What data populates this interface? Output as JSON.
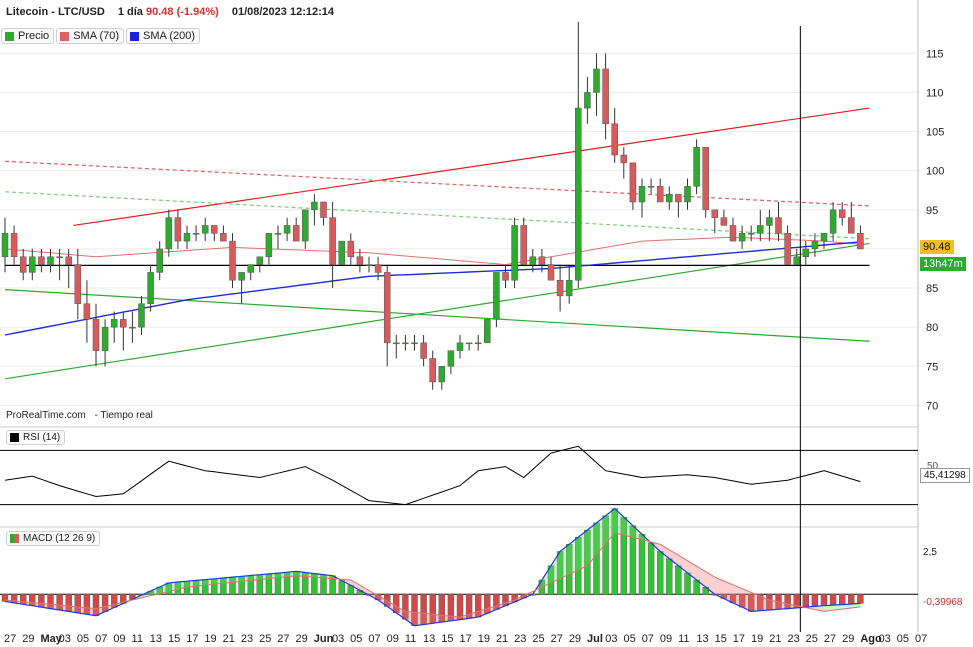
{
  "header": {
    "instrument": "Litecoin - LTC/USD",
    "period": "1 día",
    "last": "90.48",
    "change": "(-1.94%)",
    "datetime": "01/08/2023 12:12:14"
  },
  "legend": {
    "items": [
      {
        "label": "Precio",
        "color": "#2eab2e"
      },
      {
        "label": "SMA (70)",
        "color": "#e06060"
      },
      {
        "label": "SMA (200)",
        "color": "#1e1ee0"
      }
    ]
  },
  "source": {
    "brand": "ProRealTime.com",
    "mode": "- Tiempo real"
  },
  "price_tag": {
    "value": "90.48",
    "timer": "13h47m"
  },
  "rsi": {
    "label": "RSI (14)",
    "level_label": "50",
    "value_label": "45,41298",
    "level": 50
  },
  "macd": {
    "label": "MACD (12 26 9)",
    "tick_label": "2,5",
    "value_label": "-0,39968"
  },
  "colors": {
    "up": "#2eab2e",
    "down": "#d85a5a",
    "sma70": "#e07070",
    "sma200": "#1e2ed0",
    "resistance": "#e02020",
    "support": "#2ea82e"
  },
  "chart_data": [
    {
      "type": "candlestick",
      "title": "Litecoin - LTC/USD",
      "y_ticks": [
        70,
        75,
        80,
        85,
        90,
        95,
        100,
        105,
        110,
        115
      ],
      "ylim": [
        67.5,
        119
      ],
      "x_tick_labels": [
        "27",
        "29",
        "May",
        "03",
        "05",
        "07",
        "09",
        "11",
        "13",
        "15",
        "17",
        "19",
        "21",
        "23",
        "25",
        "27",
        "29",
        "Jun",
        "03",
        "05",
        "07",
        "09",
        "11",
        "13",
        "15",
        "17",
        "19",
        "21",
        "23",
        "25",
        "27",
        "29",
        "Jul",
        "03",
        "05",
        "07",
        "09",
        "11",
        "13",
        "15",
        "17",
        "19",
        "21",
        "23",
        "25",
        "27",
        "29",
        "Ago",
        "03",
        "05",
        "07"
      ],
      "crosshair": {
        "x": "2023-07-25",
        "y": 87.8
      },
      "series": [
        {
          "name": "Precio",
          "ohlc": [
            [
              89,
              94,
              87,
              92
            ],
            [
              92,
              93,
              88,
              89
            ],
            [
              89,
              90,
              86,
              87
            ],
            [
              87,
              90,
              86,
              89
            ],
            [
              89,
              90,
              87,
              88
            ],
            [
              88,
              90,
              87,
              89
            ],
            [
              89,
              90,
              86,
              89
            ],
            [
              89,
              90,
              85,
              88
            ],
            [
              88,
              90,
              81,
              83
            ],
            [
              83,
              86,
              78,
              81
            ],
            [
              81,
              83,
              75,
              77
            ],
            [
              77,
              81,
              75,
              80
            ],
            [
              80,
              82,
              78,
              81
            ],
            [
              81,
              82,
              77,
              80
            ],
            [
              80,
              82,
              78,
              80
            ],
            [
              80,
              84,
              79,
              83
            ],
            [
              83,
              88,
              82,
              87
            ],
            [
              87,
              91,
              86,
              90
            ],
            [
              90,
              95,
              89,
              94
            ],
            [
              94,
              95,
              90,
              91
            ],
            [
              91,
              93,
              90,
              92
            ],
            [
              92,
              93,
              91,
              92
            ],
            [
              92,
              94,
              91,
              93
            ],
            [
              93,
              93,
              91,
              92
            ],
            [
              92,
              93,
              91,
              91
            ],
            [
              91,
              92,
              85,
              86
            ],
            [
              86,
              87,
              83,
              87
            ],
            [
              87,
              88,
              86,
              88
            ],
            [
              88,
              89,
              87,
              89
            ],
            [
              89,
              92,
              88,
              92
            ],
            [
              92,
              93,
              90,
              92
            ],
            [
              92,
              94,
              91,
              93
            ],
            [
              93,
              94,
              91,
              91
            ],
            [
              91,
              95,
              90,
              95
            ],
            [
              95,
              97,
              93,
              96
            ],
            [
              96,
              96,
              93,
              94
            ],
            [
              94,
              96,
              85,
              88
            ],
            [
              88,
              91,
              88,
              91
            ],
            [
              91,
              92,
              88,
              89
            ],
            [
              89,
              90,
              87,
              88
            ],
            [
              88,
              89,
              87,
              88
            ],
            [
              88,
              89,
              86,
              87
            ],
            [
              87,
              88,
              75,
              78
            ],
            [
              78,
              79,
              76,
              78
            ],
            [
              78,
              79,
              77,
              78
            ],
            [
              78,
              79,
              77,
              78
            ],
            [
              78,
              79,
              75,
              76
            ],
            [
              76,
              77,
              72,
              73
            ],
            [
              73,
              75,
              72,
              75
            ],
            [
              75,
              77,
              74,
              77
            ],
            [
              77,
              79,
              76,
              78
            ],
            [
              78,
              78,
              77,
              78
            ],
            [
              78,
              79,
              77,
              78
            ],
            [
              78,
              81,
              78,
              81
            ],
            [
              81,
              87,
              80,
              87
            ],
            [
              87,
              88,
              85,
              86
            ],
            [
              86,
              94,
              85,
              93
            ],
            [
              93,
              94,
              88,
              88
            ],
            [
              88,
              90,
              87,
              89
            ],
            [
              89,
              90,
              87,
              88
            ],
            [
              88,
              89,
              86,
              86
            ],
            [
              86,
              88,
              82,
              84
            ],
            [
              84,
              88,
              83,
              86
            ],
            [
              86,
              129,
              85,
              108
            ],
            [
              108,
              112,
              106,
              110
            ],
            [
              110,
              115,
              107,
              113
            ],
            [
              113,
              115,
              104,
              106
            ],
            [
              106,
              108,
              101,
              102
            ],
            [
              102,
              103,
              99,
              101
            ],
            [
              101,
              101,
              95,
              96
            ],
            [
              96,
              99,
              94,
              98
            ],
            [
              98,
              99,
              97,
              98
            ],
            [
              98,
              99,
              96,
              96
            ],
            [
              96,
              98,
              95,
              97
            ],
            [
              97,
              97,
              94,
              96
            ],
            [
              96,
              99,
              95,
              98
            ],
            [
              98,
              104,
              97,
              103
            ],
            [
              103,
              103,
              94,
              95
            ],
            [
              95,
              95,
              92,
              94
            ],
            [
              94,
              95,
              93,
              93
            ],
            [
              93,
              94,
              91,
              91
            ],
            [
              91,
              93,
              90,
              92
            ],
            [
              92,
              93,
              91,
              92
            ],
            [
              92,
              95,
              91,
              93
            ],
            [
              93,
              95,
              91,
              94
            ],
            [
              94,
              96,
              91,
              92
            ],
            [
              92,
              93,
              88,
              88
            ],
            [
              88,
              90,
              88,
              89
            ],
            [
              89,
              91,
              88,
              90
            ],
            [
              90,
              92,
              89,
              91
            ],
            [
              91,
              92,
              90,
              92
            ],
            [
              92,
              96,
              91,
              95
            ],
            [
              95,
              96,
              93,
              94
            ],
            [
              94,
              96,
              92,
              92
            ],
            [
              92,
              93,
              90,
              90
            ]
          ]
        },
        {
          "name": "SMA (70)",
          "anchors": [
            [
              0,
              90
            ],
            [
              10,
              89
            ],
            [
              25,
              90.2
            ],
            [
              40,
              89.5
            ],
            [
              55,
              88
            ],
            [
              70,
              91
            ],
            [
              80,
              91.5
            ],
            [
              90,
              91
            ],
            [
              95,
              90.5
            ]
          ]
        },
        {
          "name": "SMA (200)",
          "anchors": [
            [
              0,
              79
            ],
            [
              20,
              83.5
            ],
            [
              40,
              86.5
            ],
            [
              60,
              87.5
            ],
            [
              75,
              89
            ],
            [
              90,
              90.5
            ],
            [
              95,
              91
            ]
          ]
        }
      ],
      "trendlines": [
        {
          "style": "solid",
          "color": "#e02020",
          "from": [
            7.5,
            93
          ],
          "to": [
            95,
            108
          ]
        },
        {
          "style": "dashed",
          "color": "#e06060",
          "from": [
            0,
            101.2
          ],
          "to": [
            95,
            95.5
          ]
        },
        {
          "style": "dashed",
          "color": "#7acc7a",
          "from": [
            0,
            97.3
          ],
          "to": [
            95,
            91.3
          ]
        },
        {
          "style": "solid",
          "color": "#2ea82e",
          "from": [
            0,
            73.4
          ],
          "to": [
            95,
            90.7
          ]
        },
        {
          "style": "solid",
          "color": "#2ea82e",
          "from": [
            0,
            84.8
          ],
          "to": [
            95,
            78.2
          ]
        },
        {
          "style": "solid",
          "color": "#000000",
          "from": [
            0,
            87.9
          ],
          "to": [
            95,
            87.9
          ]
        }
      ]
    },
    {
      "type": "line",
      "title": "RSI (14)",
      "ylim": [
        15,
        85
      ],
      "levels": [
        30,
        70
      ],
      "series": [
        {
          "name": "RSI (14)",
          "anchors": [
            [
              0,
              48
            ],
            [
              3,
              51
            ],
            [
              6,
              44
            ],
            [
              10,
              36
            ],
            [
              13,
              38
            ],
            [
              18,
              62
            ],
            [
              22,
              55
            ],
            [
              28,
              50
            ],
            [
              33,
              58
            ],
            [
              36,
              48
            ],
            [
              40,
              33
            ],
            [
              44,
              30
            ],
            [
              47,
              37
            ],
            [
              50,
              44
            ],
            [
              52,
              55
            ],
            [
              55,
              58
            ],
            [
              57,
              50
            ],
            [
              60,
              68
            ],
            [
              63,
              73
            ],
            [
              66,
              55
            ],
            [
              70,
              50
            ],
            [
              75,
              52
            ],
            [
              78,
              50
            ],
            [
              82,
              45
            ],
            [
              86,
              48
            ],
            [
              90,
              55
            ],
            [
              95,
              45
            ]
          ]
        }
      ]
    },
    {
      "type": "bar",
      "title": "MACD (12 26 9)",
      "ylim": [
        -2.5,
        4.5
      ],
      "y_ticks": [
        2.5
      ],
      "series": [
        {
          "name": "MACD",
          "anchors": [
            [
              0,
              -0.5
            ],
            [
              10,
              -1.5
            ],
            [
              18,
              0.8
            ],
            [
              32,
              1.6
            ],
            [
              36,
              1.3
            ],
            [
              41,
              -0.4
            ],
            [
              45,
              -2.2
            ],
            [
              52,
              -1.6
            ],
            [
              58,
              0
            ],
            [
              61,
              3
            ],
            [
              67,
              6
            ],
            [
              72,
              3
            ],
            [
              78,
              0
            ],
            [
              82,
              -1.2
            ],
            [
              86,
              -1.0
            ],
            [
              90,
              -0.8
            ],
            [
              95,
              -0.6
            ]
          ]
        },
        {
          "name": "Signal",
          "anchors": [
            [
              0,
              -0.4
            ],
            [
              10,
              -1
            ],
            [
              20,
              0.5
            ],
            [
              32,
              1.3
            ],
            [
              38,
              1.0
            ],
            [
              44,
              -1.2
            ],
            [
              50,
              -1.6
            ],
            [
              56,
              -0.4
            ],
            [
              60,
              0.8
            ],
            [
              64,
              2
            ],
            [
              67,
              4.3
            ],
            [
              72,
              3.5
            ],
            [
              78,
              1.2
            ],
            [
              84,
              -0.4
            ],
            [
              90,
              -1.2
            ],
            [
              95,
              -0.8
            ]
          ]
        }
      ]
    }
  ]
}
